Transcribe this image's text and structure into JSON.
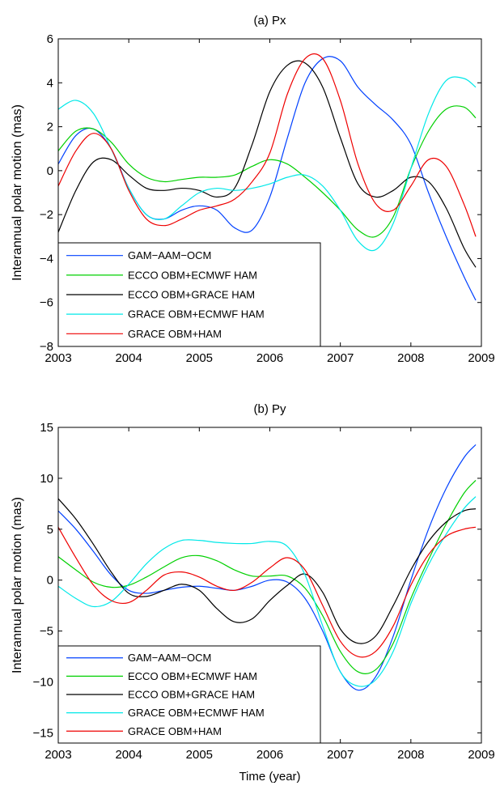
{
  "chart_data": [
    {
      "type": "line",
      "title": "(a) Px",
      "xlabel": "",
      "ylabel": "Interannual polar motion (mas)",
      "xlim": [
        2003,
        2009
      ],
      "ylim": [
        -8,
        6
      ],
      "xticks": [
        2003,
        2004,
        2005,
        2006,
        2007,
        2008,
        2009
      ],
      "yticks": [
        -8,
        -6,
        -4,
        -2,
        0,
        2,
        4,
        6
      ],
      "legend_position": "bottom-left",
      "series": [
        {
          "name": "GAM−AAM−OCM",
          "color": "#0040ff",
          "x": [
            2003.0,
            2003.25,
            2003.5,
            2003.75,
            2004.0,
            2004.25,
            2004.5,
            2004.75,
            2005.0,
            2005.25,
            2005.5,
            2005.75,
            2006.0,
            2006.25,
            2006.5,
            2006.75,
            2007.0,
            2007.25,
            2007.5,
            2007.75,
            2008.0,
            2008.25,
            2008.5,
            2008.75,
            2008.92
          ],
          "y": [
            0.3,
            1.6,
            1.9,
            1.0,
            -0.8,
            -2.0,
            -2.2,
            -1.8,
            -1.6,
            -1.8,
            -2.6,
            -2.7,
            -1.2,
            1.5,
            4.0,
            5.1,
            5.0,
            3.8,
            3.0,
            2.3,
            1.2,
            -1.0,
            -3.0,
            -4.8,
            -5.9
          ]
        },
        {
          "name": "ECCO OBM+ECMWF HAM",
          "color": "#00d000",
          "x": [
            2003.0,
            2003.25,
            2003.5,
            2003.75,
            2004.0,
            2004.25,
            2004.5,
            2004.75,
            2005.0,
            2005.25,
            2005.5,
            2005.75,
            2006.0,
            2006.25,
            2006.5,
            2006.75,
            2007.0,
            2007.25,
            2007.5,
            2007.75,
            2008.0,
            2008.25,
            2008.5,
            2008.75,
            2008.92
          ],
          "y": [
            0.9,
            1.8,
            1.9,
            1.3,
            0.3,
            -0.3,
            -0.5,
            -0.4,
            -0.3,
            -0.3,
            -0.2,
            0.2,
            0.5,
            0.3,
            -0.3,
            -1.0,
            -1.8,
            -2.7,
            -3.0,
            -2.1,
            0.1,
            1.8,
            2.8,
            2.9,
            2.4
          ]
        },
        {
          "name": "ECCO OBM+GRACE HAM",
          "color": "#000000",
          "x": [
            2003.0,
            2003.25,
            2003.5,
            2003.75,
            2004.0,
            2004.25,
            2004.5,
            2004.75,
            2005.0,
            2005.25,
            2005.5,
            2005.75,
            2006.0,
            2006.25,
            2006.5,
            2006.75,
            2007.0,
            2007.25,
            2007.5,
            2007.75,
            2008.0,
            2008.25,
            2008.5,
            2008.75,
            2008.92
          ],
          "y": [
            -2.8,
            -0.9,
            0.4,
            0.5,
            -0.2,
            -0.8,
            -0.9,
            -0.8,
            -0.9,
            -1.2,
            -0.8,
            1.2,
            3.6,
            4.8,
            4.9,
            3.8,
            1.5,
            -0.6,
            -1.2,
            -0.9,
            -0.3,
            -0.5,
            -1.7,
            -3.5,
            -4.4
          ]
        },
        {
          "name": "GRACE OBM+ECMWF HAM",
          "color": "#00e8e8",
          "x": [
            2003.0,
            2003.25,
            2003.5,
            2003.75,
            2004.0,
            2004.25,
            2004.5,
            2004.75,
            2005.0,
            2005.25,
            2005.5,
            2005.75,
            2006.0,
            2006.25,
            2006.5,
            2006.75,
            2007.0,
            2007.25,
            2007.5,
            2007.75,
            2008.0,
            2008.25,
            2008.5,
            2008.75,
            2008.92
          ],
          "y": [
            2.8,
            3.2,
            2.6,
            1.0,
            -0.8,
            -2.0,
            -2.2,
            -1.6,
            -1.0,
            -0.8,
            -0.9,
            -0.8,
            -0.6,
            -0.3,
            -0.2,
            -0.7,
            -1.8,
            -3.2,
            -3.6,
            -2.4,
            0.1,
            2.6,
            4.1,
            4.2,
            3.8
          ]
        },
        {
          "name": "GRACE OBM+HAM",
          "color": "#ee0000",
          "x": [
            2003.0,
            2003.25,
            2003.5,
            2003.75,
            2004.0,
            2004.25,
            2004.5,
            2004.75,
            2005.0,
            2005.25,
            2005.5,
            2005.75,
            2006.0,
            2006.25,
            2006.5,
            2006.75,
            2007.0,
            2007.25,
            2007.5,
            2007.75,
            2008.0,
            2008.25,
            2008.5,
            2008.75,
            2008.92
          ],
          "y": [
            -0.7,
            0.9,
            1.7,
            1.0,
            -0.9,
            -2.2,
            -2.5,
            -2.2,
            -1.8,
            -1.6,
            -1.3,
            -0.5,
            0.8,
            3.5,
            5.1,
            5.1,
            3.2,
            0.3,
            -1.5,
            -1.8,
            -0.7,
            0.5,
            0.2,
            -1.5,
            -3.0
          ]
        }
      ]
    },
    {
      "type": "line",
      "title": "(b) Py",
      "xlabel": "Time (year)",
      "ylabel": "Interannual polar motion (mas)",
      "xlim": [
        2003,
        2009
      ],
      "ylim": [
        -16,
        15
      ],
      "xticks": [
        2003,
        2004,
        2005,
        2006,
        2007,
        2008,
        2009
      ],
      "yticks": [
        -15,
        -10,
        -5,
        0,
        5,
        10,
        15
      ],
      "legend_position": "bottom-left",
      "series": [
        {
          "name": "GAM−AAM−OCM",
          "color": "#0040ff",
          "x": [
            2003.0,
            2003.25,
            2003.5,
            2003.75,
            2004.0,
            2004.25,
            2004.5,
            2004.75,
            2005.0,
            2005.25,
            2005.5,
            2005.75,
            2006.0,
            2006.25,
            2006.5,
            2006.75,
            2007.0,
            2007.25,
            2007.5,
            2007.75,
            2008.0,
            2008.25,
            2008.5,
            2008.75,
            2008.92
          ],
          "y": [
            6.8,
            5.0,
            2.8,
            0.5,
            -1.0,
            -1.3,
            -1.0,
            -0.7,
            -0.6,
            -0.8,
            -1.0,
            -0.6,
            0.0,
            -0.2,
            -1.8,
            -5.0,
            -9.0,
            -10.8,
            -9.5,
            -5.5,
            0.0,
            5.0,
            9.0,
            12.0,
            13.3
          ]
        },
        {
          "name": "ECCO OBM+ECMWF HAM",
          "color": "#00d000",
          "x": [
            2003.0,
            2003.25,
            2003.5,
            2003.75,
            2004.0,
            2004.25,
            2004.5,
            2004.75,
            2005.0,
            2005.25,
            2005.5,
            2005.75,
            2006.0,
            2006.25,
            2006.5,
            2006.75,
            2007.0,
            2007.25,
            2007.5,
            2007.75,
            2008.0,
            2008.25,
            2008.5,
            2008.75,
            2008.92
          ],
          "y": [
            2.3,
            1.0,
            -0.2,
            -0.7,
            -0.5,
            0.3,
            1.3,
            2.2,
            2.4,
            1.9,
            1.0,
            0.4,
            0.4,
            0.4,
            -0.8,
            -3.5,
            -7.0,
            -9.0,
            -8.8,
            -6.2,
            -1.8,
            2.0,
            5.5,
            8.5,
            9.8
          ]
        },
        {
          "name": "ECCO OBM+GRACE HAM",
          "color": "#000000",
          "x": [
            2003.0,
            2003.25,
            2003.5,
            2003.75,
            2004.0,
            2004.25,
            2004.5,
            2004.75,
            2005.0,
            2005.25,
            2005.5,
            2005.75,
            2006.0,
            2006.25,
            2006.5,
            2006.75,
            2007.0,
            2007.25,
            2007.5,
            2007.75,
            2008.0,
            2008.25,
            2008.5,
            2008.75,
            2008.92
          ],
          "y": [
            8.0,
            6.0,
            3.5,
            0.8,
            -1.3,
            -1.6,
            -1.0,
            -0.4,
            -1.0,
            -2.8,
            -4.1,
            -3.8,
            -2.0,
            -0.5,
            0.6,
            -1.2,
            -4.8,
            -6.2,
            -5.5,
            -2.5,
            1.0,
            3.8,
            5.7,
            6.8,
            7.0
          ]
        },
        {
          "name": "GRACE OBM+ECMWF HAM",
          "color": "#00e8e8",
          "x": [
            2003.0,
            2003.25,
            2003.5,
            2003.75,
            2004.0,
            2004.25,
            2004.5,
            2004.75,
            2005.0,
            2005.25,
            2005.5,
            2005.75,
            2006.0,
            2006.25,
            2006.5,
            2006.75,
            2007.0,
            2007.25,
            2007.5,
            2007.75,
            2008.0,
            2008.25,
            2008.5,
            2008.75,
            2008.92
          ],
          "y": [
            -0.6,
            -1.8,
            -2.6,
            -2.1,
            -0.4,
            1.6,
            3.1,
            3.9,
            3.9,
            3.7,
            3.6,
            3.6,
            3.8,
            3.3,
            0.5,
            -4.5,
            -9.0,
            -10.4,
            -9.8,
            -7.0,
            -2.3,
            1.5,
            4.5,
            7.0,
            8.2
          ]
        },
        {
          "name": "GRACE OBM+HAM",
          "color": "#ee0000",
          "x": [
            2003.0,
            2003.25,
            2003.5,
            2003.75,
            2004.0,
            2004.25,
            2004.5,
            2004.75,
            2005.0,
            2005.25,
            2005.5,
            2005.75,
            2006.0,
            2006.25,
            2006.5,
            2006.75,
            2007.0,
            2007.25,
            2007.5,
            2007.75,
            2008.0,
            2008.25,
            2008.5,
            2008.75,
            2008.92
          ],
          "y": [
            5.2,
            2.2,
            -0.5,
            -2.0,
            -2.2,
            -1.0,
            0.5,
            0.8,
            0.3,
            -0.6,
            -1.0,
            -0.2,
            1.2,
            2.2,
            1.0,
            -2.5,
            -6.0,
            -7.5,
            -7.0,
            -4.5,
            -0.5,
            2.5,
            4.3,
            5.0,
            5.2
          ]
        }
      ]
    }
  ]
}
